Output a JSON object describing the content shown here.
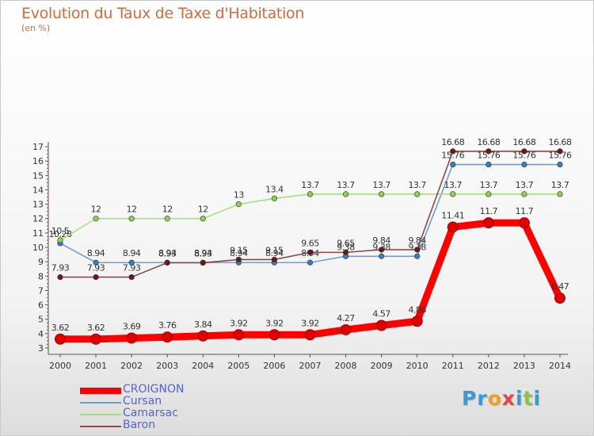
{
  "title": "Evolution du Taux de Taxe d'Habitation",
  "subtitle": "(en %)",
  "logo": {
    "text": "Proxiti",
    "letters": [
      {
        "ch": "P",
        "color": "#3a9ad9"
      },
      {
        "ch": "r",
        "color": "#3a9ad9"
      },
      {
        "ch": "o",
        "color": "#f0a020"
      },
      {
        "ch": "x",
        "color": "#e04848"
      },
      {
        "ch": "i",
        "color": "#3a9ad9"
      },
      {
        "ch": "t",
        "color": "#8bc34a"
      },
      {
        "ch": "i",
        "color": "#3a9ad9"
      }
    ]
  },
  "chart_data": {
    "type": "line",
    "x": [
      2000,
      2001,
      2002,
      2003,
      2004,
      2005,
      2006,
      2007,
      2008,
      2009,
      2010,
      2011,
      2012,
      2013,
      2014
    ],
    "ylim": [
      3,
      17
    ],
    "yticks": [
      3,
      4,
      5,
      6,
      7,
      8,
      9,
      10,
      11,
      12,
      13,
      14,
      15,
      16,
      17
    ],
    "grid": false,
    "legend_position": "bottom-left",
    "series": [
      {
        "name": "CROIGNON",
        "color": "#ee0000",
        "markerColor": "#cc0000",
        "emphasis": true,
        "values": [
          3.62,
          3.62,
          3.69,
          3.76,
          3.84,
          3.92,
          3.92,
          3.92,
          4.27,
          4.57,
          4.86,
          11.41,
          11.7,
          11.7,
          6.47
        ]
      },
      {
        "name": "Cursan",
        "color": "#6b9fd0",
        "markerColor": "#3a7dc0",
        "emphasis": false,
        "values": [
          10.28,
          8.94,
          8.94,
          8.94,
          8.94,
          8.94,
          8.94,
          8.94,
          9.38,
          9.38,
          9.38,
          15.76,
          15.76,
          15.76,
          15.76
        ]
      },
      {
        "name": "Camarsac",
        "color": "#a6e07a",
        "markerColor": "#8ed14f",
        "emphasis": false,
        "values": [
          10.5,
          12,
          12,
          12,
          12,
          13,
          13.4,
          13.7,
          13.7,
          13.7,
          13.7,
          13.7,
          13.7,
          13.7,
          13.7
        ]
      },
      {
        "name": "Baron",
        "color": "#8c4a4a",
        "markerColor": "#6b1a1a",
        "emphasis": false,
        "values": [
          7.93,
          7.93,
          7.93,
          8.93,
          8.93,
          9.15,
          9.15,
          9.65,
          9.65,
          9.84,
          9.84,
          16.68,
          16.68,
          16.68,
          16.68
        ]
      }
    ]
  }
}
